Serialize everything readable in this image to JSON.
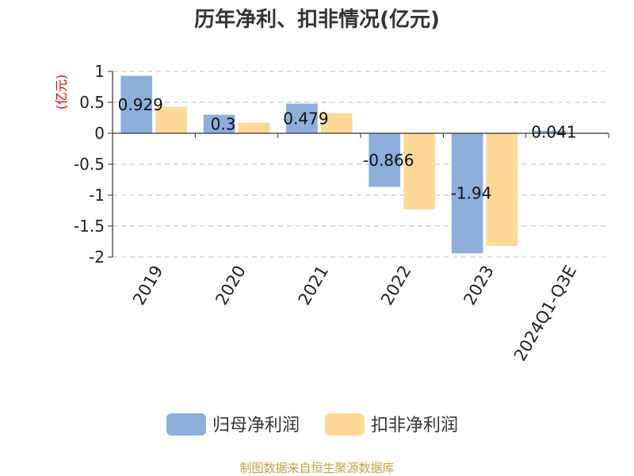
{
  "chart_data": {
    "type": "bar",
    "title": "历年净利、扣非情况(亿元)",
    "unit_label": "(亿元)",
    "categories": [
      "2019",
      "2020",
      "2021",
      "2022",
      "2023",
      "2024Q1-Q3E"
    ],
    "series": [
      {
        "name": "归母净利润",
        "color": "#8eaedb",
        "values": [
          0.929,
          0.3,
          0.479,
          -0.866,
          -1.94,
          0.041
        ],
        "labels": [
          "0.929",
          "0.3",
          "0.479",
          "-0.866",
          "-1.94",
          "0.041"
        ]
      },
      {
        "name": "扣非净利润",
        "color": "#fed897",
        "values": [
          0.43,
          0.17,
          0.32,
          -1.23,
          -1.82,
          null
        ]
      }
    ],
    "yticks": [
      1,
      0.5,
      0,
      -0.5,
      -1,
      -1.5,
      -2
    ],
    "ytick_labels": [
      "1",
      "0.5",
      "0",
      "-0.5",
      "-1",
      "-1.5",
      "-2"
    ],
    "ylim": [
      -2,
      1
    ],
    "grid": true,
    "legend_position": "bottom",
    "xlabel": "",
    "ylabel": ""
  },
  "source_text": "制图数据来自恒生聚源数据库"
}
